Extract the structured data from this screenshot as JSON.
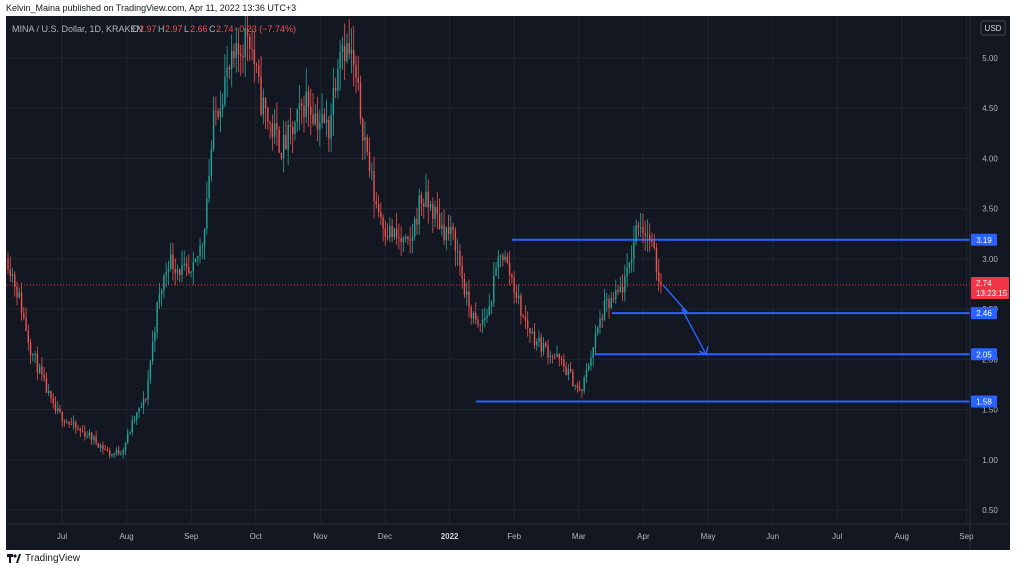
{
  "publication": {
    "text": "Kelvin_Maina published on TradingView.com, Apr 11, 2022 13:36 UTC+3"
  },
  "symbol": {
    "title": "MINA / U.S. Dollar, 1D, KRAKEN",
    "o_label": "O",
    "o_value": "2.97",
    "h_label": "H",
    "h_value": "2.97",
    "l_label": "L",
    "l_value": "2.66",
    "c_label": "C",
    "c_value": "2.74",
    "change": "−0.23 (−7.74%)"
  },
  "currency": "USD",
  "footer": {
    "brand": "TradingView"
  },
  "colors": {
    "up": "#26a69a",
    "down": "#ef5350",
    "level": "#2962ff",
    "bg": "#131722",
    "price": "#f23645"
  },
  "chart_data": {
    "type": "candlestick",
    "title": "MINA / U.S. Dollar, 1D, KRAKEN",
    "y_ticks": [
      "0.50",
      "1.00",
      "1.50",
      "2.00",
      "2.50",
      "3.00",
      "3.50",
      "4.00",
      "4.50",
      "5.00"
    ],
    "x_ticks": [
      "Jul",
      "Aug",
      "Sep",
      "Oct",
      "Nov",
      "Dec",
      "2022",
      "Feb",
      "Mar",
      "Apr",
      "May",
      "Jun",
      "Jul",
      "Aug",
      "Sep"
    ],
    "ylim": [
      0.25,
      5.4
    ],
    "grid": true,
    "last_price": {
      "value": "2.74",
      "countdown": "13:23:15"
    },
    "levels": [
      {
        "label": "3.19",
        "value": 3.19
      },
      {
        "label": "2.46",
        "value": 2.46
      },
      {
        "label": "2.05",
        "value": 2.05
      },
      {
        "label": "1.58",
        "value": 1.58
      }
    ],
    "series": [
      {
        "values": [
          3.0,
          2.6,
          2.1,
          1.8,
          1.5,
          1.4,
          1.3,
          1.25,
          1.15,
          1.05,
          1.1,
          1.4,
          1.6,
          2.5,
          3.0,
          2.9,
          2.8,
          3.2,
          4.4,
          4.8,
          5.0,
          5.3,
          4.6,
          4.3,
          4.1,
          4.3,
          4.6,
          4.4,
          4.3,
          5.2,
          5.0,
          4.3,
          3.6,
          3.3,
          3.2,
          3.1,
          3.6,
          3.5,
          3.3,
          3.2,
          2.6,
          2.3,
          2.5,
          3.1,
          2.8,
          2.4,
          2.2,
          2.1,
          2.0,
          1.85,
          1.65,
          2.1,
          2.5,
          2.6,
          2.8,
          3.4,
          3.2,
          2.74
        ]
      }
    ],
    "projection": [
      {
        "x": "Apr 11",
        "y": 2.74
      },
      {
        "x": "Apr 20",
        "y": 2.46
      },
      {
        "x": "Apr 18",
        "y": 2.5
      },
      {
        "x": "May 1",
        "y": 2.05
      }
    ]
  }
}
